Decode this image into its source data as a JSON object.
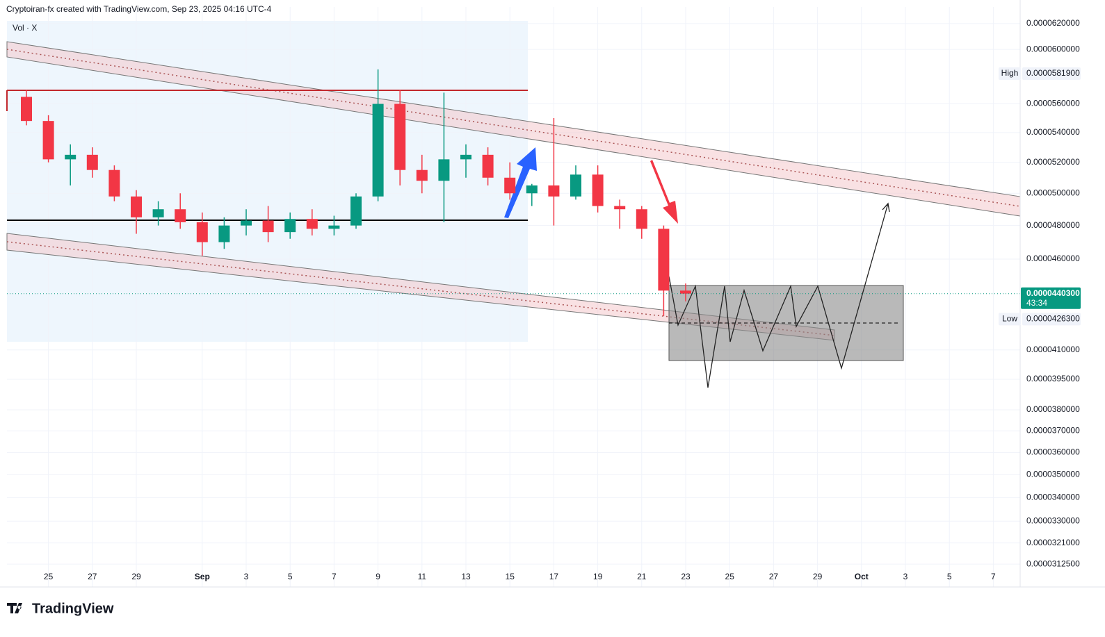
{
  "chart_data": {
    "type": "candlestick",
    "title": "Cryptoiran-fx created with TradingView.com, Sep 23, 2025 04:16 UTC-4",
    "indicator": "Vol · X",
    "logo": "TradingView",
    "log_scale": true,
    "up_color": "#089981",
    "down_color": "#f23645",
    "categories": [
      null,
      "25",
      null,
      "27",
      null,
      "29",
      null,
      null,
      "Sep",
      null,
      "3",
      null,
      "5",
      null,
      "7",
      null,
      "9",
      null,
      "11",
      null,
      "13",
      null,
      "15",
      null,
      "17",
      null,
      "19",
      null,
      "21",
      null,
      "23",
      null,
      "25",
      null,
      "27",
      null,
      "29",
      null,
      "Oct",
      null,
      "3",
      null,
      "5",
      null,
      "7"
    ],
    "open": [
      5.65e-05,
      5.48e-05,
      5.22e-05,
      5.25e-05,
      5.15e-05,
      4.98e-05,
      4.85e-05,
      4.9e-05,
      4.82e-05,
      4.7e-05,
      4.8e-05,
      4.83e-05,
      4.76e-05,
      4.84e-05,
      4.78e-05,
      4.8e-05,
      4.98e-05,
      5.6e-05,
      5.15e-05,
      5.08e-05,
      5.22e-05,
      5.25e-05,
      5.1e-05,
      5e-05,
      5.05e-05,
      4.98e-05,
      5.12e-05,
      4.92e-05,
      4.9e-05,
      4.78e-05,
      4.42e-05,
      null,
      null,
      null,
      null,
      null,
      null,
      null,
      null,
      null,
      null,
      null,
      null,
      null,
      null
    ],
    "high": [
      5.7e-05,
      5.52e-05,
      5.32e-05,
      5.3e-05,
      5.18e-05,
      5.02e-05,
      4.95e-05,
      5e-05,
      4.88e-05,
      4.85e-05,
      4.9e-05,
      4.92e-05,
      4.88e-05,
      4.9e-05,
      4.86e-05,
      5e-05,
      5.85e-05,
      5.7e-05,
      5.25e-05,
      5.68e-05,
      5.32e-05,
      5.3e-05,
      5.2e-05,
      5.06e-05,
      5.5e-05,
      5.18e-05,
      5.18e-05,
      4.96e-05,
      4.92e-05,
      4.8e-05,
      4.46e-05,
      null,
      null,
      null,
      null,
      null,
      null,
      null,
      null,
      null,
      null,
      null,
      null,
      null,
      null
    ],
    "low": [
      5.45e-05,
      5.2e-05,
      5.05e-05,
      5.1e-05,
      4.95e-05,
      4.75e-05,
      4.8e-05,
      4.78e-05,
      4.62e-05,
      4.66e-05,
      4.74e-05,
      4.7e-05,
      4.72e-05,
      4.74e-05,
      4.74e-05,
      4.78e-05,
      4.95e-05,
      5.05e-05,
      5e-05,
      4.82e-05,
      5.1e-05,
      5.05e-05,
      4.96e-05,
      4.92e-05,
      4.8e-05,
      4.96e-05,
      4.88e-05,
      4.78e-05,
      4.72e-05,
      4.28e-05,
      4.36e-05,
      null,
      null,
      null,
      null,
      null,
      null,
      null,
      null,
      null,
      null,
      null,
      null,
      null,
      null
    ],
    "close": [
      5.48e-05,
      5.22e-05,
      5.25e-05,
      5.15e-05,
      4.98e-05,
      4.85e-05,
      4.9e-05,
      4.82e-05,
      4.7e-05,
      4.8e-05,
      4.83e-05,
      4.76e-05,
      4.84e-05,
      4.78e-05,
      4.8e-05,
      4.98e-05,
      5.6e-05,
      5.15e-05,
      5.08e-05,
      5.22e-05,
      5.25e-05,
      5.1e-05,
      5e-05,
      5.05e-05,
      4.98e-05,
      5.12e-05,
      4.92e-05,
      4.9e-05,
      4.78e-05,
      4.42e-05,
      4.403e-05,
      null,
      null,
      null,
      null,
      null,
      null,
      null,
      null,
      null,
      null,
      null,
      null,
      null,
      null
    ],
    "ylim": [
      3.098e-05,
      6.332e-05
    ],
    "yticks": [
      {
        "value": 6.2e-05,
        "label": "0.0000620000"
      },
      {
        "value": 6e-05,
        "label": "0.0000600000"
      },
      {
        "value": 5.6e-05,
        "label": "0.0000560000"
      },
      {
        "value": 5.4e-05,
        "label": "0.0000540000"
      },
      {
        "value": 5.2e-05,
        "label": "0.0000520000"
      },
      {
        "value": 5e-05,
        "label": "0.0000500000"
      },
      {
        "value": 4.8e-05,
        "label": "0.0000480000"
      },
      {
        "value": 4.6e-05,
        "label": "0.0000460000"
      },
      {
        "value": 4.1e-05,
        "label": "0.0000410000"
      },
      {
        "value": 3.95e-05,
        "label": "0.0000395000"
      },
      {
        "value": 3.8e-05,
        "label": "0.0000380000"
      },
      {
        "value": 3.7e-05,
        "label": "0.0000370000"
      },
      {
        "value": 3.6e-05,
        "label": "0.0000360000"
      },
      {
        "value": 3.5e-05,
        "label": "0.0000350000"
      },
      {
        "value": 3.4e-05,
        "label": "0.0000340000"
      },
      {
        "value": 3.3e-05,
        "label": "0.0000330000"
      },
      {
        "value": 3.21e-05,
        "label": "0.0000321000"
      },
      {
        "value": 3.125e-05,
        "label": "0.0000312500"
      }
    ],
    "grid": true,
    "annotations": [
      {
        "text": "High",
        "value": 5.819e-05,
        "value_label": "0.0000581900"
      },
      {
        "text": "Low",
        "value": 4.263e-05,
        "value_label": "0.0000426300"
      }
    ],
    "last_price": {
      "value": 4.403e-05,
      "value_label": "0.0000440300",
      "countdown": "43:34"
    }
  }
}
